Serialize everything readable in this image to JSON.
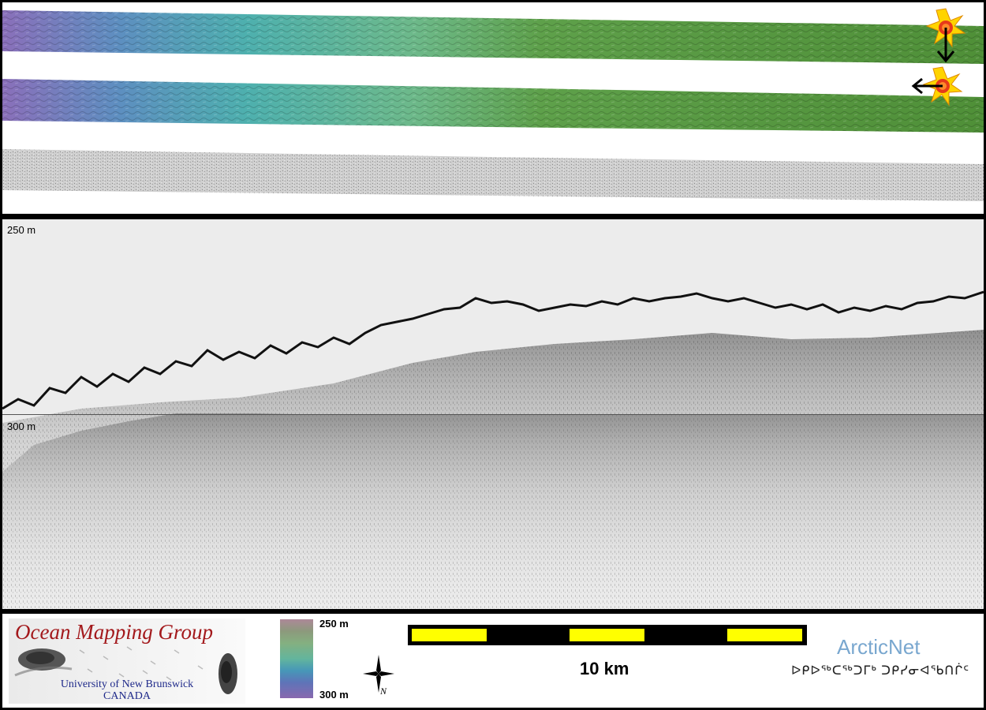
{
  "profile": {
    "depth_top_label": "250 m",
    "depth_mid_label": "300 m"
  },
  "footer": {
    "logo_title": "Ocean Mapping Group",
    "logo_university": "University of New Brunswick",
    "logo_country": "CANADA",
    "legend_top": "250 m",
    "legend_bottom": "300 m",
    "scale_label": "10 km",
    "partner_name": "ArcticNet",
    "partner_syllabics": "ᐅᑭᐅᖅᑕᖅᑐᒥᒃ ᑐᑭᓯᓂᐊᖃᑎᒌᑦ",
    "compass_letter": "N"
  },
  "colors": {
    "swath_deep": "#8b6fb8",
    "swath_mid": "#4fb0a8",
    "swath_shallow": "#5c9a3e",
    "backscatter": "#bdbdbd",
    "logo_red": "#a3191c",
    "logo_blue": "#1f2a8a",
    "scale_yellow": "#ffff00",
    "arcticnet_blue": "#79a7cf"
  },
  "icons": {
    "sun_marker": "sun-burst-icon",
    "down_arrow": "arrow-down-icon",
    "left_arrow": "arrow-left-icon",
    "compass": "compass-rose-icon"
  }
}
